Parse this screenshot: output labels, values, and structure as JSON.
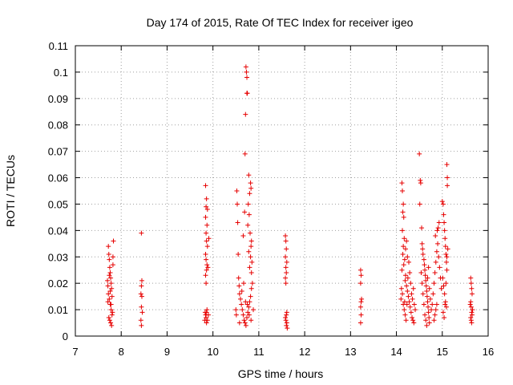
{
  "chart_data": {
    "type": "scatter",
    "title": "Day 174 of 2015, Rate Of TEC Index for receiver igeo",
    "xlabel": "GPS time / hours",
    "ylabel": "ROTI / TECUs",
    "xlim": [
      7,
      16
    ],
    "ylim": [
      0,
      0.11
    ],
    "xticks": [
      7,
      8,
      9,
      10,
      11,
      12,
      13,
      14,
      15,
      16
    ],
    "yticks": [
      0,
      0.01,
      0.02,
      0.03,
      0.04,
      0.05,
      0.06,
      0.07,
      0.08,
      0.09,
      0.1,
      0.11
    ],
    "ytick_labels": [
      "0",
      "0.01",
      "0.02",
      "0.03",
      "0.04",
      "0.05",
      "0.06",
      "0.07",
      "0.08",
      "0.09",
      "0.1",
      "0.11"
    ],
    "grid": true,
    "marker": "+",
    "color": "#e60000",
    "points": [
      [
        7.72,
        0.034
      ],
      [
        7.73,
        0.031
      ],
      [
        7.74,
        0.029
      ],
      [
        7.75,
        0.026
      ],
      [
        7.76,
        0.024
      ],
      [
        7.77,
        0.022
      ],
      [
        7.78,
        0.02
      ],
      [
        7.79,
        0.018
      ],
      [
        7.72,
        0.016
      ],
      [
        7.74,
        0.014
      ],
      [
        7.76,
        0.012
      ],
      [
        7.78,
        0.01
      ],
      [
        7.8,
        0.008
      ],
      [
        7.73,
        0.007
      ],
      [
        7.75,
        0.006
      ],
      [
        7.77,
        0.005
      ],
      [
        7.79,
        0.004
      ],
      [
        7.81,
        0.009
      ],
      [
        7.7,
        0.021
      ],
      [
        7.71,
        0.019
      ],
      [
        7.83,
        0.036
      ],
      [
        7.82,
        0.027
      ],
      [
        7.8,
        0.015
      ],
      [
        7.76,
        0.017
      ],
      [
        7.74,
        0.023
      ],
      [
        7.78,
        0.012
      ],
      [
        7.82,
        0.03
      ],
      [
        7.71,
        0.013
      ],
      [
        8.44,
        0.039
      ],
      [
        8.45,
        0.021
      ],
      [
        8.44,
        0.019
      ],
      [
        8.43,
        0.016
      ],
      [
        8.45,
        0.015
      ],
      [
        8.44,
        0.011
      ],
      [
        8.46,
        0.009
      ],
      [
        8.43,
        0.006
      ],
      [
        8.44,
        0.004
      ],
      [
        9.84,
        0.057
      ],
      [
        9.86,
        0.052
      ],
      [
        9.85,
        0.049
      ],
      [
        9.88,
        0.048
      ],
      [
        9.84,
        0.045
      ],
      [
        9.87,
        0.042
      ],
      [
        9.85,
        0.039
      ],
      [
        9.86,
        0.036
      ],
      [
        9.88,
        0.034
      ],
      [
        9.84,
        0.031
      ],
      [
        9.85,
        0.029
      ],
      [
        9.87,
        0.027
      ],
      [
        9.86,
        0.025
      ],
      [
        9.84,
        0.023
      ],
      [
        9.85,
        0.02
      ],
      [
        9.87,
        0.01
      ],
      [
        9.86,
        0.009
      ],
      [
        9.84,
        0.008
      ],
      [
        9.85,
        0.007
      ],
      [
        9.88,
        0.006
      ],
      [
        9.86,
        0.005
      ],
      [
        9.83,
        0.009
      ],
      [
        9.9,
        0.008
      ],
      [
        9.82,
        0.006
      ],
      [
        9.91,
        0.037
      ],
      [
        9.89,
        0.026
      ],
      [
        10.52,
        0.055
      ],
      [
        10.53,
        0.05
      ],
      [
        10.54,
        0.043
      ],
      [
        10.55,
        0.031
      ],
      [
        10.56,
        0.022
      ],
      [
        10.57,
        0.019
      ],
      [
        10.58,
        0.016
      ],
      [
        10.6,
        0.014
      ],
      [
        10.62,
        0.012
      ],
      [
        10.64,
        0.01
      ],
      [
        10.66,
        0.008
      ],
      [
        10.68,
        0.006
      ],
      [
        10.7,
        0.005
      ],
      [
        10.72,
        0.004
      ],
      [
        10.74,
        0.007
      ],
      [
        10.76,
        0.009
      ],
      [
        10.78,
        0.011
      ],
      [
        10.8,
        0.013
      ],
      [
        10.82,
        0.015
      ],
      [
        10.84,
        0.018
      ],
      [
        10.86,
        0.02
      ],
      [
        10.5,
        0.01
      ],
      [
        10.51,
        0.008
      ],
      [
        10.58,
        0.005
      ],
      [
        10.63,
        0.017
      ],
      [
        10.67,
        0.02
      ],
      [
        10.71,
        0.013
      ],
      [
        10.75,
        0.012
      ],
      [
        10.79,
        0.008
      ],
      [
        10.83,
        0.006
      ],
      [
        10.88,
        0.01
      ],
      [
        10.72,
        0.102
      ],
      [
        10.73,
        0.1
      ],
      [
        10.74,
        0.098
      ],
      [
        10.74,
        0.092
      ],
      [
        10.75,
        0.092
      ],
      [
        10.71,
        0.084
      ],
      [
        10.7,
        0.069
      ],
      [
        10.78,
        0.061
      ],
      [
        10.82,
        0.058
      ],
      [
        10.83,
        0.056
      ],
      [
        10.8,
        0.054
      ],
      [
        10.77,
        0.05
      ],
      [
        10.79,
        0.046
      ],
      [
        10.76,
        0.042
      ],
      [
        10.81,
        0.039
      ],
      [
        10.84,
        0.036
      ],
      [
        10.83,
        0.034
      ],
      [
        10.78,
        0.032
      ],
      [
        10.82,
        0.03
      ],
      [
        10.85,
        0.028
      ],
      [
        10.8,
        0.026
      ],
      [
        10.84,
        0.024
      ],
      [
        10.69,
        0.047
      ],
      [
        10.66,
        0.038
      ],
      [
        11.58,
        0.038
      ],
      [
        11.59,
        0.036
      ],
      [
        11.6,
        0.033
      ],
      [
        11.58,
        0.03
      ],
      [
        11.61,
        0.028
      ],
      [
        11.59,
        0.026
      ],
      [
        11.6,
        0.024
      ],
      [
        11.58,
        0.022
      ],
      [
        11.59,
        0.02
      ],
      [
        11.61,
        0.009
      ],
      [
        11.6,
        0.008
      ],
      [
        11.58,
        0.007
      ],
      [
        11.59,
        0.006
      ],
      [
        11.61,
        0.005
      ],
      [
        11.6,
        0.004
      ],
      [
        11.62,
        0.003
      ],
      [
        13.22,
        0.025
      ],
      [
        13.23,
        0.023
      ],
      [
        13.22,
        0.02
      ],
      [
        13.24,
        0.014
      ],
      [
        13.23,
        0.013
      ],
      [
        13.22,
        0.011
      ],
      [
        13.23,
        0.008
      ],
      [
        13.22,
        0.005
      ],
      [
        14.12,
        0.058
      ],
      [
        14.13,
        0.055
      ],
      [
        14.15,
        0.05
      ],
      [
        14.14,
        0.047
      ],
      [
        14.16,
        0.045
      ],
      [
        14.13,
        0.04
      ],
      [
        14.17,
        0.037
      ],
      [
        14.15,
        0.034
      ],
      [
        14.14,
        0.031
      ],
      [
        14.18,
        0.029
      ],
      [
        14.16,
        0.027
      ],
      [
        14.12,
        0.025
      ],
      [
        14.2,
        0.023
      ],
      [
        14.19,
        0.021
      ],
      [
        14.22,
        0.019
      ],
      [
        14.24,
        0.017
      ],
      [
        14.26,
        0.015
      ],
      [
        14.28,
        0.013
      ],
      [
        14.3,
        0.011
      ],
      [
        14.32,
        0.009
      ],
      [
        14.34,
        0.007
      ],
      [
        14.36,
        0.006
      ],
      [
        14.38,
        0.005
      ],
      [
        14.11,
        0.018
      ],
      [
        14.13,
        0.016
      ],
      [
        14.15,
        0.012
      ],
      [
        14.17,
        0.01
      ],
      [
        14.19,
        0.008
      ],
      [
        14.21,
        0.006
      ],
      [
        14.23,
        0.012
      ],
      [
        14.25,
        0.022
      ],
      [
        14.27,
        0.028
      ],
      [
        14.29,
        0.024
      ],
      [
        14.31,
        0.02
      ],
      [
        14.33,
        0.016
      ],
      [
        14.35,
        0.014
      ],
      [
        14.37,
        0.018
      ],
      [
        14.39,
        0.012
      ],
      [
        14.41,
        0.01
      ],
      [
        14.1,
        0.014
      ],
      [
        14.22,
        0.036
      ],
      [
        14.2,
        0.033
      ],
      [
        14.24,
        0.03
      ],
      [
        14.18,
        0.013
      ],
      [
        14.5,
        0.069
      ],
      [
        14.52,
        0.059
      ],
      [
        14.53,
        0.058
      ],
      [
        14.51,
        0.05
      ],
      [
        14.55,
        0.041
      ],
      [
        14.56,
        0.035
      ],
      [
        14.57,
        0.033
      ],
      [
        14.58,
        0.031
      ],
      [
        14.6,
        0.029
      ],
      [
        14.61,
        0.027
      ],
      [
        14.62,
        0.025
      ],
      [
        14.63,
        0.023
      ],
      [
        14.64,
        0.021
      ],
      [
        14.65,
        0.019
      ],
      [
        14.66,
        0.017
      ],
      [
        14.67,
        0.015
      ],
      [
        14.68,
        0.013
      ],
      [
        14.69,
        0.011
      ],
      [
        14.7,
        0.009
      ],
      [
        14.71,
        0.007
      ],
      [
        14.72,
        0.005
      ],
      [
        14.54,
        0.024
      ],
      [
        14.56,
        0.02
      ],
      [
        14.58,
        0.016
      ],
      [
        14.6,
        0.012
      ],
      [
        14.62,
        0.008
      ],
      [
        14.64,
        0.006
      ],
      [
        14.66,
        0.004
      ],
      [
        14.68,
        0.022
      ],
      [
        14.7,
        0.026
      ],
      [
        14.72,
        0.018
      ],
      [
        14.74,
        0.014
      ],
      [
        14.76,
        0.01
      ],
      [
        14.78,
        0.012
      ],
      [
        14.8,
        0.016
      ],
      [
        14.82,
        0.02
      ],
      [
        14.84,
        0.024
      ],
      [
        14.86,
        0.028
      ],
      [
        14.88,
        0.032
      ],
      [
        14.9,
        0.035
      ],
      [
        14.92,
        0.03
      ],
      [
        14.94,
        0.026
      ],
      [
        14.96,
        0.022
      ],
      [
        14.98,
        0.018
      ],
      [
        14.88,
        0.012
      ],
      [
        14.86,
        0.01
      ],
      [
        14.84,
        0.008
      ],
      [
        14.82,
        0.006
      ],
      [
        14.91,
        0.041
      ],
      [
        14.93,
        0.043
      ],
      [
        14.89,
        0.04
      ],
      [
        14.85,
        0.038
      ],
      [
        15.0,
        0.051
      ],
      [
        15.02,
        0.05
      ],
      [
        15.03,
        0.046
      ],
      [
        15.04,
        0.043
      ],
      [
        15.05,
        0.04
      ],
      [
        15.06,
        0.037
      ],
      [
        15.07,
        0.034
      ],
      [
        15.08,
        0.031
      ],
      [
        15.09,
        0.028
      ],
      [
        15.1,
        0.025
      ],
      [
        15.01,
        0.022
      ],
      [
        15.03,
        0.019
      ],
      [
        15.05,
        0.016
      ],
      [
        15.07,
        0.013
      ],
      [
        15.09,
        0.011
      ],
      [
        15.02,
        0.009
      ],
      [
        15.04,
        0.007
      ],
      [
        15.06,
        0.012
      ],
      [
        15.08,
        0.02
      ],
      [
        15.1,
        0.03
      ],
      [
        15.11,
        0.06
      ],
      [
        15.11,
        0.057
      ],
      [
        15.1,
        0.065
      ],
      [
        15.12,
        0.033
      ],
      [
        15.62,
        0.022
      ],
      [
        15.63,
        0.02
      ],
      [
        15.64,
        0.018
      ],
      [
        15.65,
        0.016
      ],
      [
        15.62,
        0.013
      ],
      [
        15.63,
        0.011
      ],
      [
        15.64,
        0.009
      ],
      [
        15.65,
        0.008
      ],
      [
        15.62,
        0.007
      ],
      [
        15.63,
        0.006
      ],
      [
        15.64,
        0.005
      ],
      [
        15.66,
        0.01
      ],
      [
        15.61,
        0.012
      ]
    ]
  }
}
